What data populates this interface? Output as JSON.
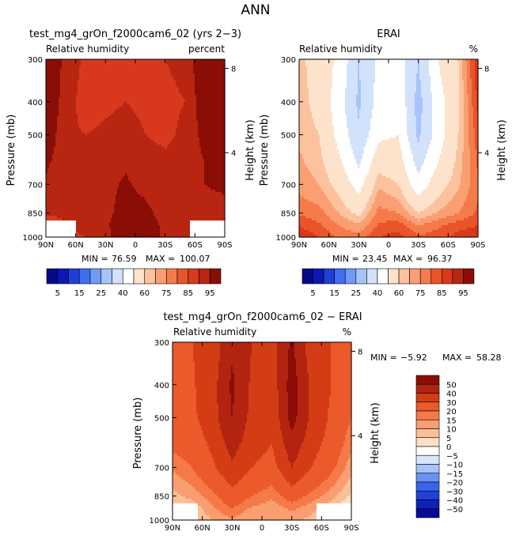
{
  "page_title": "ANN",
  "colors": {
    "abs_scale": [
      "#08088a",
      "#0b18b4",
      "#1f3fd6",
      "#3f6ff0",
      "#6f9af6",
      "#a6c4fa",
      "#d2e2fc",
      "#ffffff",
      "#fde3cc",
      "#fcc29e",
      "#fa9f73",
      "#f57b4b",
      "#e8552a",
      "#d8391c",
      "#b82612",
      "#8a0d06"
    ],
    "diff_scale": [
      "#0a0a96",
      "#0c22b8",
      "#2040d8",
      "#3a64ee",
      "#6a92f6",
      "#a6c2fa",
      "#d6e6fc",
      "#ffffff",
      "#fde0c8",
      "#fcc098",
      "#f99e70",
      "#f57a48",
      "#eb5a2a",
      "#d43c16",
      "#b22410",
      "#8a0d06"
    ],
    "hole": "#ffffff"
  },
  "panels": [
    {
      "title": "test_mg4_grOn_f2000cam6_02 (yrs 2−3)",
      "left_string": "Relative humidity",
      "right_string": "percent",
      "ylabel": "Pressure (mb)",
      "y2label": "Height (km)",
      "min_label": "MIN =",
      "min_value": "76.59",
      "max_label": "MAX =",
      "max_value": "100.07"
    },
    {
      "title": "ERAI",
      "left_string": "Relative humidity",
      "right_string": "%",
      "ylabel": "Pressure (mb)",
      "y2label": "Height (km)",
      "min_label": "MIN =",
      "min_value": "23.45",
      "max_label": "MAX =",
      "max_value": "96.37"
    },
    {
      "title": "test_mg4_grOn_f2000cam6_02 − ERAI",
      "left_string": "Relative humidity",
      "right_string": "%",
      "ylabel": "Pressure (mb)",
      "y2label": "Height (km)",
      "min_label": "MIN =",
      "min_value": "−5.92",
      "max_label": "MAX =",
      "max_value": "58.28"
    }
  ],
  "chart_data": [
    {
      "type": "heatmap",
      "title": "test_mg4_grOn_f2000cam6_02 (yrs 2−3)",
      "left_string": "Relative humidity",
      "right_string": "percent",
      "ylabel": "Pressure (mb)",
      "y2label": "Height (km)",
      "x_ticks": [
        "90N",
        "60N",
        "30N",
        "0",
        "30S",
        "60S",
        "90S"
      ],
      "x_values": [
        90,
        60,
        30,
        0,
        -30,
        -60,
        -90
      ],
      "y_ticks": [
        "300",
        "400",
        "500",
        "700",
        "850",
        "1000"
      ],
      "y_values": [
        300,
        400,
        500,
        700,
        850,
        1000
      ],
      "y2_ticks": [
        "8",
        "4"
      ],
      "y2_values": [
        8,
        4
      ],
      "yscale": "log",
      "ylim": [
        1000,
        300
      ],
      "xlim": [
        90,
        -90
      ],
      "levels": [
        5,
        10,
        15,
        20,
        25,
        30,
        40,
        50,
        60,
        65,
        70,
        75,
        80,
        85,
        90,
        95
      ],
      "colorbar_labels": [
        "5",
        "15",
        "25",
        "40",
        "60",
        "75",
        "85",
        "95"
      ],
      "min": 76.59,
      "max": 100.07,
      "lat": [
        90,
        70,
        50,
        30,
        10,
        -10,
        -30,
        -50,
        -70,
        -90
      ],
      "p": [
        300,
        400,
        500,
        600,
        700,
        850,
        925,
        1000
      ],
      "z": [
        [
          97,
          88,
          84,
          85,
          84,
          84,
          85,
          86,
          96,
          99
        ],
        [
          96,
          87,
          83,
          84,
          85,
          84,
          84,
          85,
          94,
          98
        ],
        [
          94,
          86,
          85,
          86,
          87,
          85,
          84,
          86,
          92,
          96
        ],
        [
          91,
          87,
          86,
          88,
          89,
          87,
          86,
          87,
          90,
          93
        ],
        [
          89,
          87,
          86,
          88,
          91,
          88,
          86,
          88,
          90,
          91
        ],
        [
          86,
          86,
          85,
          88,
          93,
          92,
          87,
          87,
          88,
          88
        ],
        [
          80,
          85,
          86,
          89,
          94,
          95,
          88,
          87,
          86,
          84
        ],
        [
          78,
          84,
          85,
          88,
          95,
          96,
          88,
          86,
          85,
          82
        ]
      ],
      "hole_left": {
        "lat": [
          90,
          60
        ],
        "p_top": 900
      },
      "hole_right": {
        "lat": [
          -55,
          -90
        ],
        "p_top": 900
      }
    },
    {
      "type": "heatmap",
      "title": "ERAI",
      "left_string": "Relative humidity",
      "right_string": "%",
      "ylabel": "Pressure (mb)",
      "y2label": "Height (km)",
      "x_ticks": [
        "90N",
        "60N",
        "30N",
        "0",
        "30S",
        "60S",
        "90S"
      ],
      "x_values": [
        90,
        60,
        30,
        0,
        -30,
        -60,
        -90
      ],
      "y_ticks": [
        "300",
        "400",
        "500",
        "700",
        "850",
        "1000"
      ],
      "y_values": [
        300,
        400,
        500,
        700,
        850,
        1000
      ],
      "y2_ticks": [
        "8",
        "4"
      ],
      "y2_values": [
        8,
        4
      ],
      "yscale": "log",
      "ylim": [
        1000,
        300
      ],
      "xlim": [
        90,
        -90
      ],
      "levels": [
        5,
        10,
        15,
        20,
        25,
        30,
        40,
        50,
        60,
        65,
        70,
        75,
        80,
        85,
        90,
        95
      ],
      "colorbar_labels": [
        "5",
        "15",
        "25",
        "40",
        "60",
        "75",
        "85",
        "95"
      ],
      "min": 23.45,
      "max": 96.37,
      "lat": [
        90,
        70,
        50,
        30,
        10,
        -10,
        -30,
        -50,
        -70,
        -90
      ],
      "p": [
        300,
        400,
        500,
        600,
        700,
        850,
        925,
        1000
      ],
      "z": [
        [
          62,
          56,
          48,
          30,
          42,
          46,
          30,
          50,
          60,
          85
        ],
        [
          63,
          57,
          45,
          28,
          44,
          48,
          26,
          46,
          58,
          82
        ],
        [
          64,
          60,
          47,
          32,
          48,
          50,
          28,
          45,
          60,
          78
        ],
        [
          66,
          62,
          52,
          38,
          56,
          55,
          36,
          50,
          62,
          76
        ],
        [
          68,
          65,
          57,
          46,
          64,
          60,
          44,
          56,
          64,
          74
        ],
        [
          74,
          72,
          65,
          58,
          72,
          70,
          60,
          66,
          70,
          76
        ],
        [
          80,
          76,
          70,
          66,
          76,
          78,
          70,
          74,
          78,
          80
        ],
        [
          84,
          80,
          74,
          72,
          80,
          82,
          76,
          78,
          82,
          84
        ]
      ]
    },
    {
      "type": "heatmap",
      "title": "test_mg4_grOn_f2000cam6_02 − ERAI",
      "left_string": "Relative humidity",
      "right_string": "%",
      "ylabel": "Pressure (mb)",
      "y2label": "Height (km)",
      "x_ticks": [
        "90N",
        "60N",
        "30N",
        "0",
        "30S",
        "60S",
        "90S"
      ],
      "x_values": [
        90,
        60,
        30,
        0,
        -30,
        -60,
        -90
      ],
      "y_ticks": [
        "300",
        "400",
        "500",
        "700",
        "850",
        "1000"
      ],
      "y_values": [
        300,
        400,
        500,
        700,
        850,
        1000
      ],
      "y2_ticks": [
        "8",
        "4"
      ],
      "y2_values": [
        8,
        4
      ],
      "yscale": "log",
      "ylim": [
        1000,
        300
      ],
      "xlim": [
        90,
        -90
      ],
      "levels": [
        -50,
        -40,
        -30,
        -20,
        -15,
        -10,
        -5,
        0,
        5,
        10,
        15,
        20,
        30,
        40,
        50
      ],
      "colorbar_labels": [
        "50",
        "40",
        "30",
        "20",
        "15",
        "10",
        "5",
        "0",
        "−5",
        "−10",
        "−15",
        "−20",
        "−30",
        "−40",
        "−50"
      ],
      "min": -5.92,
      "max": 58.28,
      "lat": [
        90,
        70,
        50,
        30,
        10,
        -10,
        -30,
        -50,
        -70,
        -90
      ],
      "p": [
        300,
        400,
        500,
        600,
        700,
        850,
        925,
        1000
      ],
      "z": [
        [
          28,
          30,
          34,
          48,
          40,
          36,
          52,
          34,
          30,
          22
        ],
        [
          28,
          29,
          36,
          52,
          38,
          34,
          55,
          38,
          30,
          22
        ],
        [
          26,
          28,
          36,
          50,
          37,
          32,
          54,
          38,
          28,
          20
        ],
        [
          22,
          24,
          32,
          44,
          34,
          30,
          46,
          34,
          26,
          16
        ],
        [
          16,
          20,
          28,
          38,
          30,
          26,
          40,
          30,
          22,
          12
        ],
        [
          8,
          12,
          18,
          26,
          20,
          16,
          24,
          18,
          12,
          4
        ],
        [
          2,
          6,
          14,
          20,
          14,
          12,
          16,
          12,
          6,
          -2
        ],
        [
          -2,
          4,
          10,
          14,
          10,
          10,
          12,
          8,
          2,
          -4
        ]
      ],
      "hole_left": {
        "lat": [
          90,
          65
        ],
        "p_top": 900
      },
      "hole_right": {
        "lat": [
          -55,
          -90
        ],
        "p_top": 900
      }
    }
  ]
}
